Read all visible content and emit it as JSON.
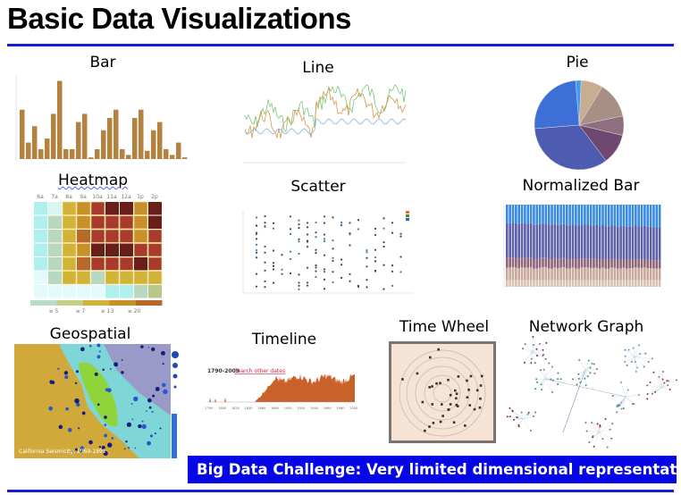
{
  "slide": {
    "title": "Basic Data Visualizations",
    "rule_color": "#1b1bd6",
    "banner": "Big Data Challenge: Very limited dimensional representation",
    "banner_color": "#0505e6"
  },
  "panels": {
    "bar": {
      "label": "Bar",
      "color": "#b5813f"
    },
    "line": {
      "label": "Line"
    },
    "pie": {
      "label": "Pie"
    },
    "heatmap": {
      "label": "Heatmap",
      "columns": [
        "6a",
        "7a",
        "8a",
        "9a",
        "10a",
        "11a",
        "12a",
        "1p",
        "2p"
      ],
      "legend": [
        "≥ 5",
        "≥ 7",
        "≥ 13",
        "≥ 20"
      ]
    },
    "scatter": {
      "label": "Scatter"
    },
    "normalized_bar": {
      "label": "Normalized Bar"
    },
    "geospatial": {
      "label": "Geospatial",
      "map_title": "California Seismicity, 1969-1991"
    },
    "timeline": {
      "label": "Timeline",
      "range": "1790-2009",
      "link": "Search other dates",
      "ticks": [
        "1790",
        "1800",
        "1820",
        "1840",
        "1860",
        "1880",
        "1900",
        "1920",
        "1940",
        "1960",
        "1980",
        "2000"
      ],
      "color": "#c8612a"
    },
    "time_wheel": {
      "label": "Time Wheel"
    },
    "network_graph": {
      "label": "Network Graph"
    }
  }
}
